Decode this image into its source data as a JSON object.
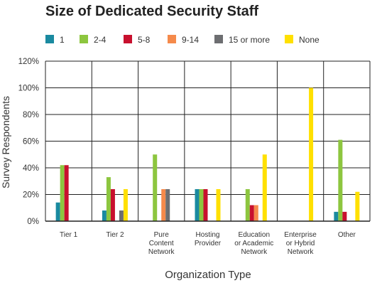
{
  "chart_data": {
    "type": "bar",
    "title": "Size of Dedicated Security Staff",
    "xlabel": "Organization Type",
    "ylabel": "Survey Respondents",
    "ylim": [
      0,
      120
    ],
    "yticks": [
      0,
      20,
      40,
      60,
      80,
      100,
      120
    ],
    "ytick_suffix": "%",
    "grid": true,
    "legend_position": "top",
    "categories": [
      [
        "Tier 1"
      ],
      [
        "Tier 2"
      ],
      [
        "Pure",
        "Content",
        "Network"
      ],
      [
        "Hosting",
        "Provider"
      ],
      [
        "Education",
        "or Academic",
        "Network"
      ],
      [
        "Enterprise",
        "or Hybrid",
        "Network"
      ],
      [
        "Other"
      ]
    ],
    "series": [
      {
        "name": "1",
        "color": "#1a8aa0",
        "values": [
          14,
          8,
          0,
          24,
          0,
          0,
          7
        ]
      },
      {
        "name": "2-4",
        "color": "#8dc63f",
        "values": [
          42,
          33,
          50,
          24,
          24,
          0,
          61
        ]
      },
      {
        "name": "5-8",
        "color": "#c8102e",
        "values": [
          42,
          24,
          0,
          24,
          12,
          0,
          7
        ]
      },
      {
        "name": "9-14",
        "color": "#f58a4b",
        "values": [
          0,
          0,
          24,
          0,
          12,
          0,
          0
        ]
      },
      {
        "name": "15 or more",
        "color": "#6d6e71",
        "values": [
          0,
          8,
          24,
          0,
          0,
          0,
          0
        ]
      },
      {
        "name": "None",
        "color": "#ffe000",
        "values": [
          0,
          24,
          0,
          24,
          50,
          100,
          22
        ]
      }
    ]
  }
}
